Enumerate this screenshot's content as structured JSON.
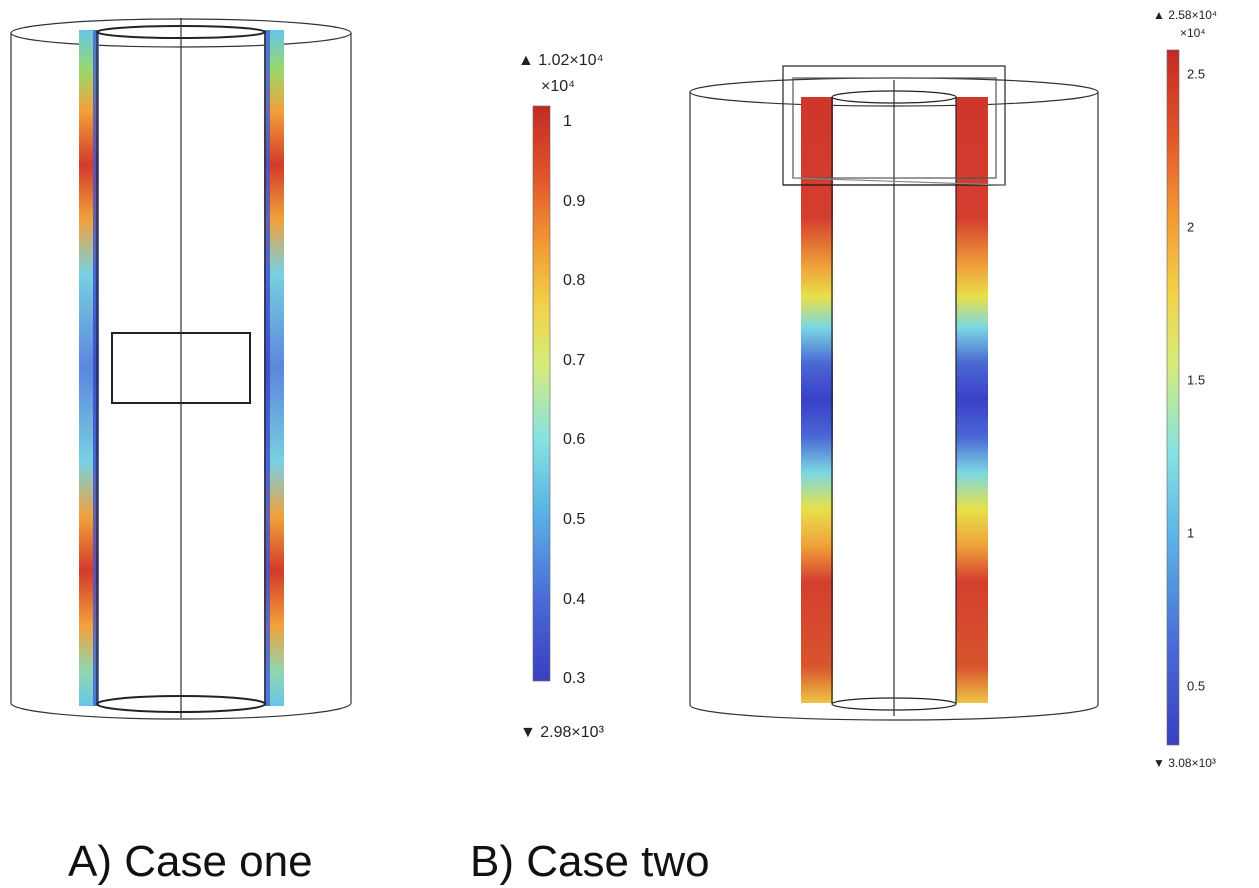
{
  "captions": {
    "case_one": "A)  Case one",
    "case_two": "B) Case two"
  },
  "colorbar_a": {
    "max_label": "▲ 1.02×10⁴",
    "multiplier": "×10⁴",
    "min_label": "▼ 2.98×10³",
    "ticks": [
      {
        "value": 1.0,
        "label": "1"
      },
      {
        "value": 0.9,
        "label": "0.9"
      },
      {
        "value": 0.8,
        "label": "0.8"
      },
      {
        "value": 0.7,
        "label": "0.7"
      },
      {
        "value": 0.6,
        "label": "0.6"
      },
      {
        "value": 0.5,
        "label": "0.5"
      },
      {
        "value": 0.4,
        "label": "0.4"
      },
      {
        "value": 0.3,
        "label": "0.3"
      }
    ],
    "range": [
      0.298,
      1.02
    ]
  },
  "colorbar_b": {
    "max_label": "▲ 2.58×10⁴",
    "multiplier": "×10⁴",
    "min_label": "▼ 3.08×10³",
    "ticks": [
      {
        "value": 2.5,
        "label": "2.5"
      },
      {
        "value": 2.0,
        "label": "2"
      },
      {
        "value": 1.5,
        "label": "1.5"
      },
      {
        "value": 1.0,
        "label": "1"
      },
      {
        "value": 0.5,
        "label": "0.5"
      }
    ],
    "range": [
      0.308,
      2.58
    ]
  },
  "colors": {
    "red": "#c8302a",
    "orange": "#f08a2c",
    "yellow": "#e8e04a",
    "cyan": "#76d8e6",
    "blue": "#3d48c4",
    "outline": "#222222"
  }
}
